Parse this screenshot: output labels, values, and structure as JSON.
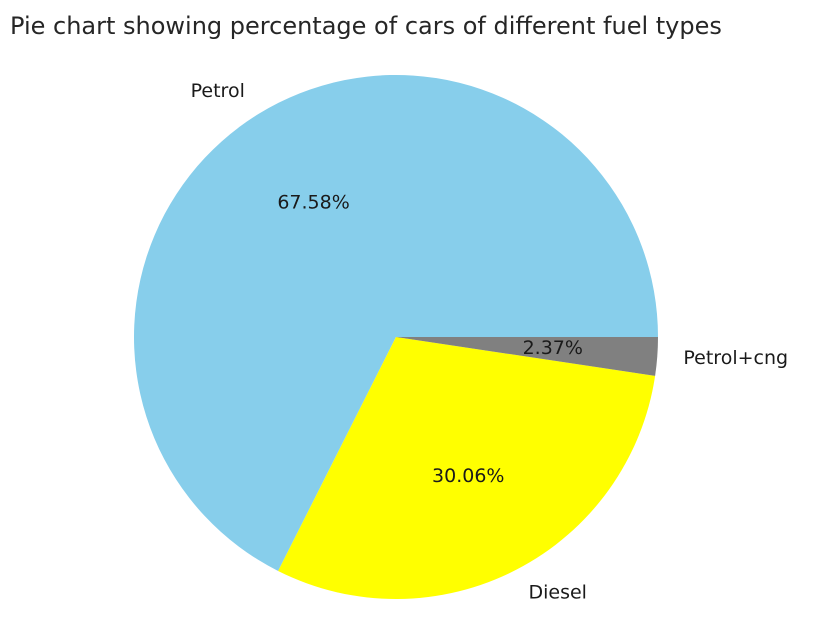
{
  "chart_data": {
    "type": "pie",
    "title": "Pie chart showing percentage of cars of different fuel types",
    "slices": [
      {
        "label": "Petrol",
        "value": 67.58,
        "pct_label": "67.58%",
        "color": "#87ceeb"
      },
      {
        "label": "Diesel",
        "value": 30.06,
        "pct_label": "30.06%",
        "color": "#ffff00"
      },
      {
        "label": "Petrol+cng",
        "value": 2.37,
        "pct_label": "2.37%",
        "color": "#808080"
      }
    ],
    "start_angle_deg": 0,
    "direction": "counterclockwise"
  }
}
